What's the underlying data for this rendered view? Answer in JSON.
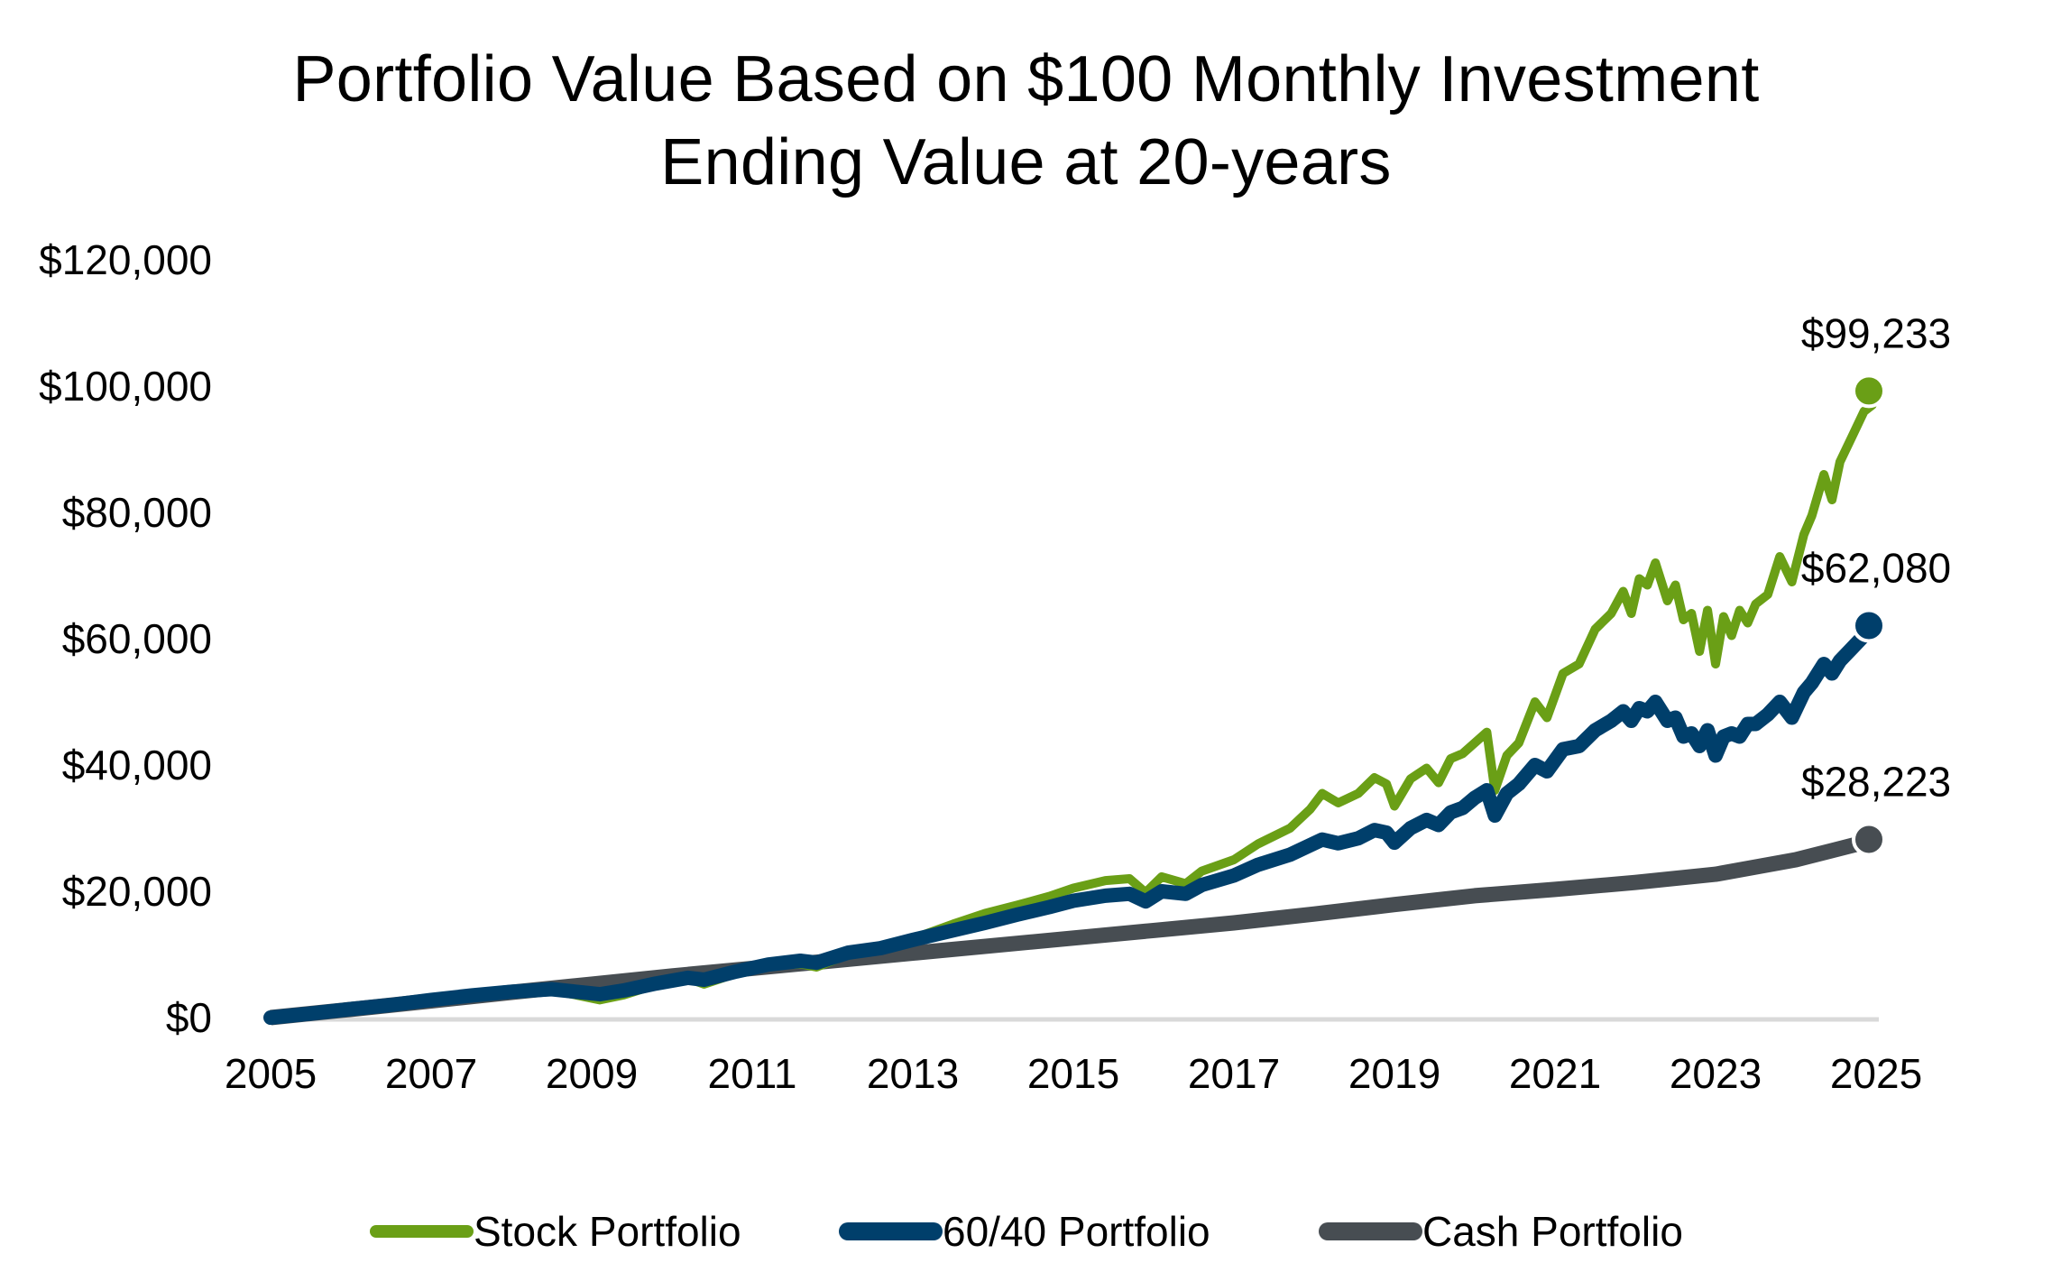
{
  "chart_data": {
    "type": "line",
    "title": "Portfolio Value Based on $100 Monthly Investment",
    "subtitle": "Ending Value at 20-years",
    "xlabel": "",
    "ylabel": "",
    "xlim": [
      2005,
      2025
    ],
    "ylim": [
      0,
      120000
    ],
    "x_ticks": [
      "2005",
      "2007",
      "2009",
      "2011",
      "2013",
      "2015",
      "2017",
      "2019",
      "2021",
      "2023",
      "2025"
    ],
    "x_tick_values": [
      2005,
      2007,
      2009,
      2011,
      2013,
      2015,
      2017,
      2019,
      2021,
      2023,
      2025
    ],
    "y_ticks": [
      "$0",
      "$20,000",
      "$40,000",
      "$60,000",
      "$80,000",
      "$100,000",
      "$120,000"
    ],
    "y_tick_values": [
      0,
      20000,
      40000,
      60000,
      80000,
      100000,
      120000
    ],
    "grid": false,
    "legend_position": "bottom",
    "series": [
      {
        "name": "Stock Portfolio",
        "color": "#6a9f16",
        "end_label": "$99,233",
        "end_value": 99233,
        "points": [
          [
            2005.0,
            0
          ],
          [
            2005.5,
            600
          ],
          [
            2006.0,
            1300
          ],
          [
            2006.5,
            1900
          ],
          [
            2007.0,
            2700
          ],
          [
            2007.5,
            3400
          ],
          [
            2008.0,
            4000
          ],
          [
            2008.5,
            4300
          ],
          [
            2008.8,
            3600
          ],
          [
            2009.1,
            2800
          ],
          [
            2009.4,
            3600
          ],
          [
            2009.8,
            5200
          ],
          [
            2010.2,
            6200
          ],
          [
            2010.4,
            5300
          ],
          [
            2010.8,
            7000
          ],
          [
            2011.2,
            8200
          ],
          [
            2011.6,
            8500
          ],
          [
            2011.8,
            8000
          ],
          [
            2012.2,
            10000
          ],
          [
            2012.6,
            10800
          ],
          [
            2013.0,
            12500
          ],
          [
            2013.5,
            14800
          ],
          [
            2013.9,
            16500
          ],
          [
            2014.3,
            17800
          ],
          [
            2014.7,
            19200
          ],
          [
            2015.0,
            20500
          ],
          [
            2015.4,
            21700
          ],
          [
            2015.7,
            22000
          ],
          [
            2015.9,
            19800
          ],
          [
            2016.1,
            22300
          ],
          [
            2016.4,
            21200
          ],
          [
            2016.6,
            23200
          ],
          [
            2017.0,
            25000
          ],
          [
            2017.3,
            27500
          ],
          [
            2017.7,
            30000
          ],
          [
            2017.95,
            33000
          ],
          [
            2018.1,
            35500
          ],
          [
            2018.3,
            34000
          ],
          [
            2018.55,
            35500
          ],
          [
            2018.75,
            38000
          ],
          [
            2018.9,
            37000
          ],
          [
            2019.0,
            33500
          ],
          [
            2019.2,
            37800
          ],
          [
            2019.4,
            39500
          ],
          [
            2019.55,
            37200
          ],
          [
            2019.7,
            41000
          ],
          [
            2019.85,
            41800
          ],
          [
            2020.0,
            43500
          ],
          [
            2020.15,
            45200
          ],
          [
            2020.25,
            36000
          ],
          [
            2020.4,
            41500
          ],
          [
            2020.55,
            43500
          ],
          [
            2020.75,
            50000
          ],
          [
            2020.9,
            47500
          ],
          [
            2021.1,
            54500
          ],
          [
            2021.3,
            56000
          ],
          [
            2021.5,
            61500
          ],
          [
            2021.7,
            64000
          ],
          [
            2021.85,
            67500
          ],
          [
            2021.95,
            64000
          ],
          [
            2022.05,
            69500
          ],
          [
            2022.15,
            68500
          ],
          [
            2022.25,
            72000
          ],
          [
            2022.4,
            66000
          ],
          [
            2022.5,
            68500
          ],
          [
            2022.6,
            63000
          ],
          [
            2022.7,
            64000
          ],
          [
            2022.8,
            58000
          ],
          [
            2022.9,
            64500
          ],
          [
            2023.0,
            56000
          ],
          [
            2023.1,
            63500
          ],
          [
            2023.2,
            60500
          ],
          [
            2023.3,
            64500
          ],
          [
            2023.4,
            62500
          ],
          [
            2023.5,
            65500
          ],
          [
            2023.65,
            67000
          ],
          [
            2023.8,
            73000
          ],
          [
            2023.95,
            69000
          ],
          [
            2024.1,
            76500
          ],
          [
            2024.2,
            79500
          ],
          [
            2024.35,
            86000
          ],
          [
            2024.45,
            82000
          ],
          [
            2024.55,
            88000
          ],
          [
            2024.7,
            92000
          ],
          [
            2024.85,
            96000
          ],
          [
            2024.95,
            97000
          ],
          [
            2025.0,
            99233
          ]
        ]
      },
      {
        "name": "60/40 Portfolio",
        "color": "#003f6b",
        "end_label": "$62,080",
        "end_value": 62080,
        "points": [
          [
            2005.0,
            0
          ],
          [
            2005.5,
            650
          ],
          [
            2006.0,
            1350
          ],
          [
            2006.5,
            2000
          ],
          [
            2007.0,
            2800
          ],
          [
            2007.5,
            3500
          ],
          [
            2008.0,
            4100
          ],
          [
            2008.5,
            4500
          ],
          [
            2008.8,
            4100
          ],
          [
            2009.1,
            3700
          ],
          [
            2009.4,
            4300
          ],
          [
            2009.8,
            5400
          ],
          [
            2010.2,
            6300
          ],
          [
            2010.4,
            6000
          ],
          [
            2010.8,
            7300
          ],
          [
            2011.2,
            8400
          ],
          [
            2011.6,
            9000
          ],
          [
            2011.8,
            8700
          ],
          [
            2012.2,
            10300
          ],
          [
            2012.6,
            11000
          ],
          [
            2013.0,
            12300
          ],
          [
            2013.5,
            13800
          ],
          [
            2013.9,
            15000
          ],
          [
            2014.3,
            16300
          ],
          [
            2014.7,
            17500
          ],
          [
            2015.0,
            18500
          ],
          [
            2015.4,
            19300
          ],
          [
            2015.7,
            19600
          ],
          [
            2015.9,
            18400
          ],
          [
            2016.1,
            20000
          ],
          [
            2016.4,
            19600
          ],
          [
            2016.6,
            21000
          ],
          [
            2017.0,
            22500
          ],
          [
            2017.3,
            24200
          ],
          [
            2017.7,
            25800
          ],
          [
            2017.95,
            27300
          ],
          [
            2018.1,
            28200
          ],
          [
            2018.3,
            27600
          ],
          [
            2018.55,
            28400
          ],
          [
            2018.75,
            29700
          ],
          [
            2018.9,
            29300
          ],
          [
            2019.0,
            27700
          ],
          [
            2019.2,
            30000
          ],
          [
            2019.4,
            31300
          ],
          [
            2019.55,
            30500
          ],
          [
            2019.7,
            32500
          ],
          [
            2019.85,
            33200
          ],
          [
            2020.0,
            34800
          ],
          [
            2020.15,
            36000
          ],
          [
            2020.25,
            32000
          ],
          [
            2020.4,
            35500
          ],
          [
            2020.55,
            37000
          ],
          [
            2020.75,
            40000
          ],
          [
            2020.9,
            39000
          ],
          [
            2021.1,
            42500
          ],
          [
            2021.3,
            43000
          ],
          [
            2021.5,
            45500
          ],
          [
            2021.7,
            47000
          ],
          [
            2021.85,
            48500
          ],
          [
            2021.95,
            47000
          ],
          [
            2022.05,
            49000
          ],
          [
            2022.15,
            48500
          ],
          [
            2022.25,
            50000
          ],
          [
            2022.4,
            47000
          ],
          [
            2022.5,
            47500
          ],
          [
            2022.6,
            44500
          ],
          [
            2022.7,
            45000
          ],
          [
            2022.8,
            43000
          ],
          [
            2022.9,
            45500
          ],
          [
            2023.0,
            41500
          ],
          [
            2023.1,
            44500
          ],
          [
            2023.2,
            45000
          ],
          [
            2023.3,
            44500
          ],
          [
            2023.4,
            46500
          ],
          [
            2023.5,
            46500
          ],
          [
            2023.65,
            48000
          ],
          [
            2023.8,
            50000
          ],
          [
            2023.95,
            47500
          ],
          [
            2024.1,
            51500
          ],
          [
            2024.2,
            53000
          ],
          [
            2024.35,
            56000
          ],
          [
            2024.45,
            54500
          ],
          [
            2024.55,
            56500
          ],
          [
            2024.7,
            58500
          ],
          [
            2024.85,
            60500
          ],
          [
            2024.95,
            61000
          ],
          [
            2025.0,
            62080
          ]
        ]
      },
      {
        "name": "Cash Portfolio",
        "color": "#474d52",
        "end_label": "$28,223",
        "end_value": 28223,
        "points": [
          [
            2005.0,
            0
          ],
          [
            2006.0,
            1300
          ],
          [
            2007.0,
            2650
          ],
          [
            2008.0,
            4000
          ],
          [
            2009.0,
            5300
          ],
          [
            2010.0,
            6600
          ],
          [
            2011.0,
            7800
          ],
          [
            2012.0,
            9000
          ],
          [
            2013.0,
            10200
          ],
          [
            2014.0,
            11400
          ],
          [
            2015.0,
            12600
          ],
          [
            2016.0,
            13800
          ],
          [
            2017.0,
            15000
          ],
          [
            2018.0,
            16400
          ],
          [
            2019.0,
            17900
          ],
          [
            2020.0,
            19300
          ],
          [
            2021.0,
            20300
          ],
          [
            2022.0,
            21400
          ],
          [
            2023.0,
            22700
          ],
          [
            2024.0,
            25000
          ],
          [
            2025.0,
            28223
          ]
        ]
      }
    ]
  }
}
